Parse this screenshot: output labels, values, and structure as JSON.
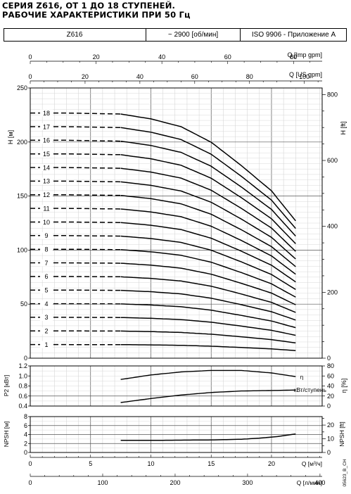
{
  "header": {
    "title_line1": "СЕРИЯ Z616, ОТ 1 ДО 18 СТУПЕНЕЙ.",
    "title_line2": "РАБОЧИЕ ХАРАКТЕРИСТИКИ ПРИ 50 Гц",
    "model": "Z616",
    "speed": "~ 2900 [об/мин]",
    "standard": "ISO 9906 - Приложение A"
  },
  "code": "05623_B_CH",
  "chart_data": [
    {
      "type": "line",
      "id": "head",
      "ylabel": "H [м]",
      "ylabel_right": "H [ft]",
      "ylim": [
        0,
        250
      ],
      "yticks": [
        0,
        50,
        100,
        150,
        200,
        250
      ],
      "ylim_right": [
        0,
        820
      ],
      "yticks_right": [
        0,
        200,
        400,
        600,
        800
      ],
      "xlim": [
        0,
        24.2
      ],
      "top_axes": [
        {
          "label": "Q [Imp gpm]",
          "max": 88.7,
          "ticks": [
            0,
            20,
            40,
            60,
            80
          ]
        },
        {
          "label": "Q [US gpm]",
          "max": 106.5,
          "ticks": [
            0,
            20,
            40,
            60,
            80,
            100
          ]
        }
      ],
      "stage_head_at_zero_flow": 12.6,
      "curve_x": [
        0,
        3,
        7.5,
        10,
        12.5,
        15,
        17.5,
        20,
        22,
        22.2
      ],
      "curve_h_per_stage": [
        12.6,
        12.6,
        12.55,
        12.3,
        11.9,
        11.1,
        9.9,
        8.6,
        7.06,
        6.9
      ],
      "dashed_until_x": 7.5,
      "stage_labels": [
        "1",
        "2",
        "3",
        "4",
        "5",
        "6",
        "7",
        "8",
        "9",
        "10",
        "11",
        "12",
        "13",
        "14",
        "15",
        "16",
        "17",
        "18"
      ]
    },
    {
      "type": "line",
      "id": "power-efficiency",
      "ylabel": "P2 [кВт]",
      "ylabel_right": "η [%]",
      "ylim": [
        0.4,
        1.2
      ],
      "yticks": [
        0.4,
        0.6,
        0.8,
        1.0,
        1.2
      ],
      "ylim_right": [
        0,
        80
      ],
      "yticks_right": [
        0,
        20,
        40,
        60,
        80
      ],
      "series": [
        {
          "name": "η",
          "axis": "right",
          "x": [
            7.5,
            10,
            12.5,
            15,
            17.5,
            20,
            22.2
          ],
          "values": [
            53,
            62,
            68,
            71,
            71,
            66,
            58
          ]
        },
        {
          "name": "кВт/ступень",
          "axis": "left",
          "x": [
            7.5,
            10,
            12.5,
            15,
            17.5,
            20,
            22.2
          ],
          "values": [
            0.47,
            0.55,
            0.62,
            0.67,
            0.7,
            0.71,
            0.72
          ]
        }
      ]
    },
    {
      "type": "line",
      "id": "npsh",
      "ylabel": "NPSH [м]",
      "ylabel_right": "NPSH [ft]",
      "ylim": [
        0,
        8
      ],
      "yticks": [
        0,
        2,
        4,
        6,
        8
      ],
      "ylim_right": [
        0,
        26.2
      ],
      "yticks_right": [
        0,
        10,
        20
      ],
      "series": [
        {
          "name": "NPSH",
          "x": [
            7.5,
            10,
            12.5,
            15,
            17.5,
            19,
            20.5,
            22.2
          ],
          "values": [
            2.7,
            2.7,
            2.75,
            2.8,
            2.95,
            3.2,
            3.55,
            4.2
          ]
        }
      ]
    }
  ],
  "x_axes": [
    {
      "label": "Q [м³/ч]",
      "max": 24.2,
      "ticks": [
        0,
        5,
        10,
        15,
        20
      ]
    },
    {
      "label": "Q [л/мин]",
      "max": 403,
      "ticks": [
        0,
        100,
        200,
        300,
        400
      ]
    }
  ]
}
